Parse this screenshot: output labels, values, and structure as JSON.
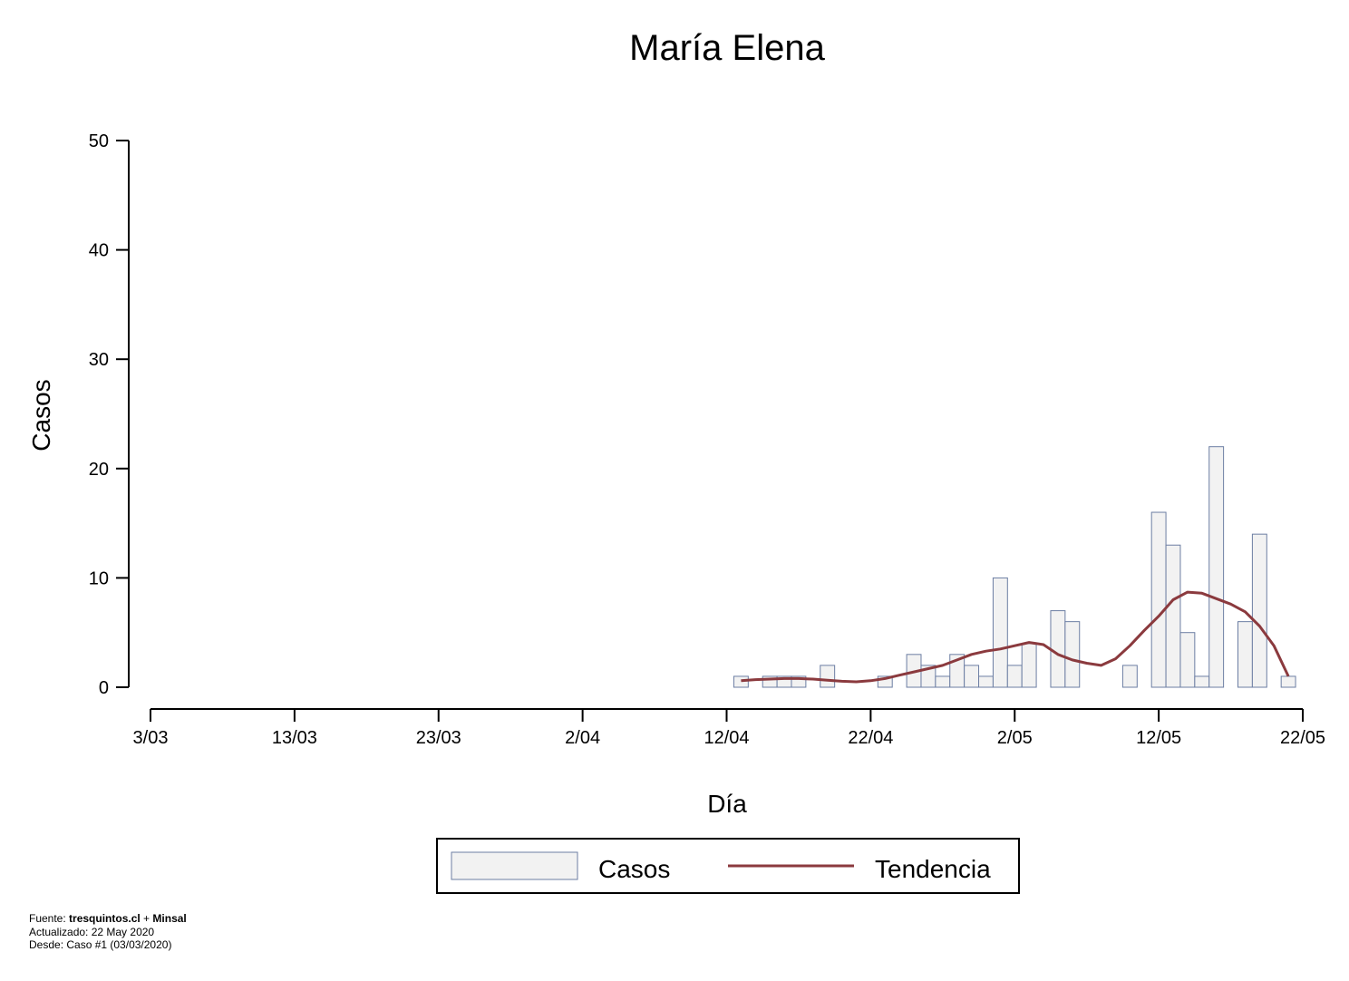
{
  "chart_data": {
    "type": "bar",
    "title": "María Elena",
    "xlabel": "Día",
    "ylabel": "Casos",
    "ylim": [
      0,
      50
    ],
    "yticks": [
      0,
      10,
      20,
      30,
      40,
      50
    ],
    "xlim": [
      "2020-03-03",
      "2020-05-22"
    ],
    "xticks": [
      {
        "date": "2020-03-03",
        "label": "3/03"
      },
      {
        "date": "2020-03-13",
        "label": "13/03"
      },
      {
        "date": "2020-03-23",
        "label": "23/03"
      },
      {
        "date": "2020-04-02",
        "label": "2/04"
      },
      {
        "date": "2020-04-12",
        "label": "12/04"
      },
      {
        "date": "2020-04-22",
        "label": "22/04"
      },
      {
        "date": "2020-05-02",
        "label": "2/05"
      },
      {
        "date": "2020-05-12",
        "label": "12/05"
      },
      {
        "date": "2020-05-22",
        "label": "22/05"
      }
    ],
    "grid": false,
    "legend_position": "bottom-center",
    "series": [
      {
        "name": "Casos",
        "type": "bar",
        "color_fill": "#f2f2f2",
        "color_stroke": "#6c7ea3",
        "points": [
          {
            "x": "2020-04-13",
            "y": 1
          },
          {
            "x": "2020-04-15",
            "y": 1
          },
          {
            "x": "2020-04-16",
            "y": 1
          },
          {
            "x": "2020-04-17",
            "y": 1
          },
          {
            "x": "2020-04-19",
            "y": 2
          },
          {
            "x": "2020-04-23",
            "y": 1
          },
          {
            "x": "2020-04-25",
            "y": 3
          },
          {
            "x": "2020-04-26",
            "y": 2
          },
          {
            "x": "2020-04-27",
            "y": 1
          },
          {
            "x": "2020-04-28",
            "y": 3
          },
          {
            "x": "2020-04-29",
            "y": 2
          },
          {
            "x": "2020-04-30",
            "y": 1
          },
          {
            "x": "2020-05-01",
            "y": 10
          },
          {
            "x": "2020-05-02",
            "y": 2
          },
          {
            "x": "2020-05-03",
            "y": 4
          },
          {
            "x": "2020-05-05",
            "y": 7
          },
          {
            "x": "2020-05-06",
            "y": 6
          },
          {
            "x": "2020-05-10",
            "y": 2
          },
          {
            "x": "2020-05-12",
            "y": 16
          },
          {
            "x": "2020-05-13",
            "y": 13
          },
          {
            "x": "2020-05-14",
            "y": 5
          },
          {
            "x": "2020-05-15",
            "y": 1
          },
          {
            "x": "2020-05-16",
            "y": 22
          },
          {
            "x": "2020-05-18",
            "y": 6
          },
          {
            "x": "2020-05-19",
            "y": 14
          },
          {
            "x": "2020-05-21",
            "y": 1
          }
        ]
      },
      {
        "name": "Tendencia",
        "type": "line",
        "color": "#8b3a3e",
        "points": [
          {
            "x": "2020-04-13",
            "y": 0.6
          },
          {
            "x": "2020-04-14",
            "y": 0.7
          },
          {
            "x": "2020-04-15",
            "y": 0.75
          },
          {
            "x": "2020-04-16",
            "y": 0.8
          },
          {
            "x": "2020-04-17",
            "y": 0.8
          },
          {
            "x": "2020-04-18",
            "y": 0.75
          },
          {
            "x": "2020-04-19",
            "y": 0.65
          },
          {
            "x": "2020-04-20",
            "y": 0.55
          },
          {
            "x": "2020-04-21",
            "y": 0.5
          },
          {
            "x": "2020-04-22",
            "y": 0.6
          },
          {
            "x": "2020-04-23",
            "y": 0.8
          },
          {
            "x": "2020-04-24",
            "y": 1.1
          },
          {
            "x": "2020-04-25",
            "y": 1.4
          },
          {
            "x": "2020-04-26",
            "y": 1.7
          },
          {
            "x": "2020-04-27",
            "y": 2.0
          },
          {
            "x": "2020-04-28",
            "y": 2.5
          },
          {
            "x": "2020-04-29",
            "y": 3.0
          },
          {
            "x": "2020-04-30",
            "y": 3.3
          },
          {
            "x": "2020-05-01",
            "y": 3.5
          },
          {
            "x": "2020-05-02",
            "y": 3.8
          },
          {
            "x": "2020-05-03",
            "y": 4.1
          },
          {
            "x": "2020-05-04",
            "y": 3.9
          },
          {
            "x": "2020-05-05",
            "y": 3.0
          },
          {
            "x": "2020-05-06",
            "y": 2.5
          },
          {
            "x": "2020-05-07",
            "y": 2.2
          },
          {
            "x": "2020-05-08",
            "y": 2.0
          },
          {
            "x": "2020-05-09",
            "y": 2.6
          },
          {
            "x": "2020-05-10",
            "y": 3.8
          },
          {
            "x": "2020-05-11",
            "y": 5.2
          },
          {
            "x": "2020-05-12",
            "y": 6.5
          },
          {
            "x": "2020-05-13",
            "y": 8.0
          },
          {
            "x": "2020-05-14",
            "y": 8.7
          },
          {
            "x": "2020-05-15",
            "y": 8.6
          },
          {
            "x": "2020-05-16",
            "y": 8.1
          },
          {
            "x": "2020-05-17",
            "y": 7.6
          },
          {
            "x": "2020-05-18",
            "y": 6.9
          },
          {
            "x": "2020-05-19",
            "y": 5.6
          },
          {
            "x": "2020-05-20",
            "y": 3.8
          },
          {
            "x": "2020-05-21",
            "y": 1.0
          }
        ]
      }
    ]
  },
  "footer": {
    "source_prefix": "Fuente: ",
    "source_site": "tresquintos.cl",
    "source_joiner": " + ",
    "source_org": "Minsal",
    "updated": "Actualizado: 22 May 2020",
    "since": "Desde: Caso #1  (03/03/2020)"
  }
}
